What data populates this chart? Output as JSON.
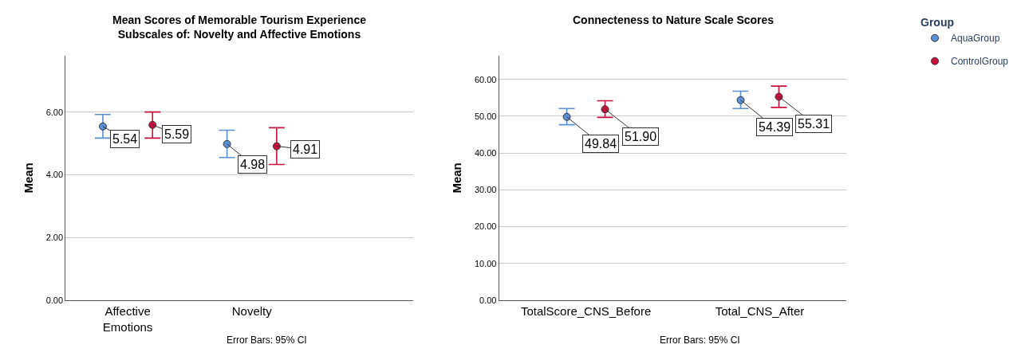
{
  "chart_data": [
    {
      "type": "scatter",
      "title": "Mean Scores of Memorable Tourism Experience\nSubscales of: Novelty and Affective Emotions",
      "ylabel": "Mean",
      "categories": [
        "Affective\nEmotions",
        "Novelty"
      ],
      "ylim": [
        0,
        7.8
      ],
      "yticks": [
        {
          "value": 0,
          "label": "0.00"
        },
        {
          "value": 2,
          "label": "2.00"
        },
        {
          "value": 4,
          "label": "4.00"
        },
        {
          "value": 6,
          "label": "6.00"
        }
      ],
      "grid": "y",
      "marker": "circle",
      "legend": false,
      "series": [
        {
          "color": "#5b8fd6",
          "values": [
            5.54,
            4.98
          ],
          "value_labels": [
            "5.54",
            "4.98"
          ],
          "errors": [
            [
              5.17,
              5.92
            ],
            [
              4.55,
              5.42
            ]
          ]
        },
        {
          "color": "#c8103e",
          "values": [
            5.59,
            4.91
          ],
          "value_labels": [
            "5.59",
            "4.91"
          ],
          "errors": [
            [
              5.17,
              6.0
            ],
            [
              4.33,
              5.5
            ]
          ]
        }
      ],
      "annotations": [
        "Error Bars: 95% CI"
      ]
    },
    {
      "type": "scatter",
      "title": "Connecteness to Nature Scale Scores",
      "ylabel": "Mean",
      "legend_title": "Group",
      "categories": [
        "TotalScore_CNS_Before",
        "Total_CNS_After"
      ],
      "ylim": [
        0,
        66.5
      ],
      "yticks": [
        {
          "value": 0,
          "label": "0.00"
        },
        {
          "value": 10,
          "label": "10.00"
        },
        {
          "value": 20,
          "label": "20.00"
        },
        {
          "value": 30,
          "label": "30.00"
        },
        {
          "value": 40,
          "label": "40.00"
        },
        {
          "value": 50,
          "label": "50.00"
        },
        {
          "value": 60,
          "label": "60.00"
        }
      ],
      "grid": "y",
      "marker": "circle",
      "legend": "top right",
      "series": [
        {
          "name": "AquaGroup",
          "color": "#5b8fd6",
          "values": [
            49.84,
            54.39
          ],
          "value_labels": [
            "49.84",
            "54.39"
          ],
          "errors": [
            [
              47.7,
              52.1
            ],
            [
              52.1,
              56.8
            ]
          ]
        },
        {
          "name": "ControlGroup",
          "color": "#c8103e",
          "values": [
            51.9,
            55.31
          ],
          "value_labels": [
            "51.90",
            "55.31"
          ],
          "errors": [
            [
              49.7,
              54.2
            ],
            [
              52.4,
              58.2
            ]
          ]
        }
      ],
      "annotations": [
        "Error Bars: 95% CI"
      ]
    }
  ]
}
